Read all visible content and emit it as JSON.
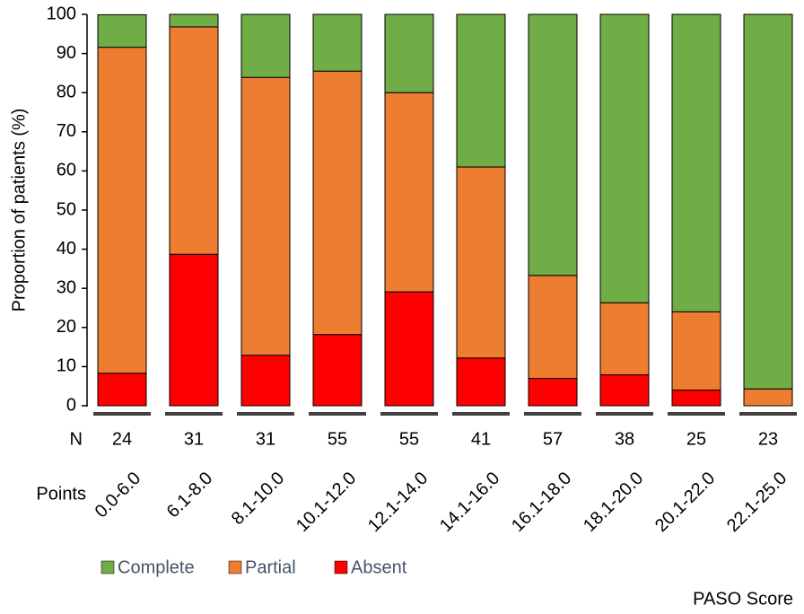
{
  "chart_data": {
    "type": "stacked-bar",
    "y_label": "Proportion of patients (%)",
    "x_label": "PASO Score",
    "n_label": "N",
    "categories_label": "Points",
    "categories": [
      "0.0-6.0",
      "6.1-8.0",
      "8.1-10.0",
      "10.1-12.0",
      "12.1-14.0",
      "14.1-16.0",
      "16.1-18.0",
      "18.1-20.0",
      "20.1-22.0",
      "22.1-25.0"
    ],
    "n": [
      24,
      31,
      31,
      55,
      55,
      41,
      57,
      38,
      25,
      23
    ],
    "series": [
      {
        "name": "Complete",
        "color": "#70ad47",
        "values": [
          8.3,
          3.2,
          16.1,
          14.5,
          20.0,
          39.0,
          66.7,
          73.7,
          76.0,
          95.7
        ]
      },
      {
        "name": "Partial",
        "color": "#ed7d31",
        "values": [
          83.3,
          58.1,
          71.0,
          67.3,
          50.9,
          48.8,
          26.3,
          18.4,
          20.0,
          4.3
        ]
      },
      {
        "name": "Absent",
        "color": "#ff0000",
        "values": [
          8.3,
          38.7,
          12.9,
          18.2,
          29.1,
          12.2,
          7.0,
          7.9,
          4.0,
          0
        ]
      }
    ],
    "ylim": [
      0,
      100
    ],
    "yticks": [
      0,
      10,
      20,
      30,
      40,
      50,
      60,
      70,
      80,
      90,
      100
    ]
  }
}
